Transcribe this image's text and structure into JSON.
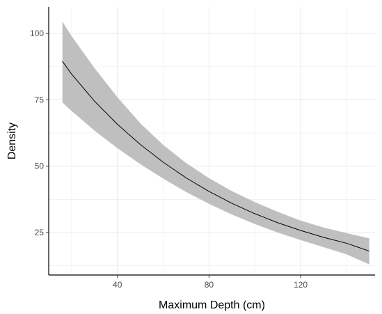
{
  "chart_data": {
    "type": "line",
    "title": "",
    "xlabel": "Maximum Depth (cm)",
    "ylabel": "Density",
    "xlim": [
      10,
      152.5
    ],
    "ylim": [
      9,
      110
    ],
    "x_ticks": [
      40,
      80,
      120
    ],
    "y_ticks": [
      25,
      50,
      75,
      100
    ],
    "x_tick_labels": [
      "40",
      "80",
      "120"
    ],
    "y_tick_labels": [
      "25",
      "50",
      "75",
      "100"
    ],
    "grid": true,
    "legend": "none",
    "colors": {
      "line": "#000000",
      "ribbon": "#bfbfbf",
      "grid": "#ebebeb",
      "axis": "#000000"
    },
    "series": [
      {
        "x": [
          16,
          20,
          30,
          40,
          50,
          60,
          70,
          80,
          90,
          100,
          110,
          120,
          130,
          140,
          150
        ],
        "y": [
          89.5,
          84.7,
          74.5,
          65.8,
          58.2,
          51.5,
          45.6,
          40.5,
          36.0,
          32.1,
          28.7,
          25.8,
          23.2,
          21.0,
          18.0
        ],
        "lower": [
          74.0,
          70.8,
          63.4,
          56.8,
          50.8,
          45.3,
          40.3,
          35.8,
          31.8,
          28.2,
          25.0,
          22.2,
          19.5,
          16.8,
          13.0
        ],
        "upper": [
          104.5,
          99.0,
          87.0,
          76.0,
          66.2,
          58.0,
          51.2,
          45.5,
          40.6,
          36.5,
          32.8,
          29.5,
          26.9,
          24.8,
          22.8
        ]
      }
    ]
  }
}
